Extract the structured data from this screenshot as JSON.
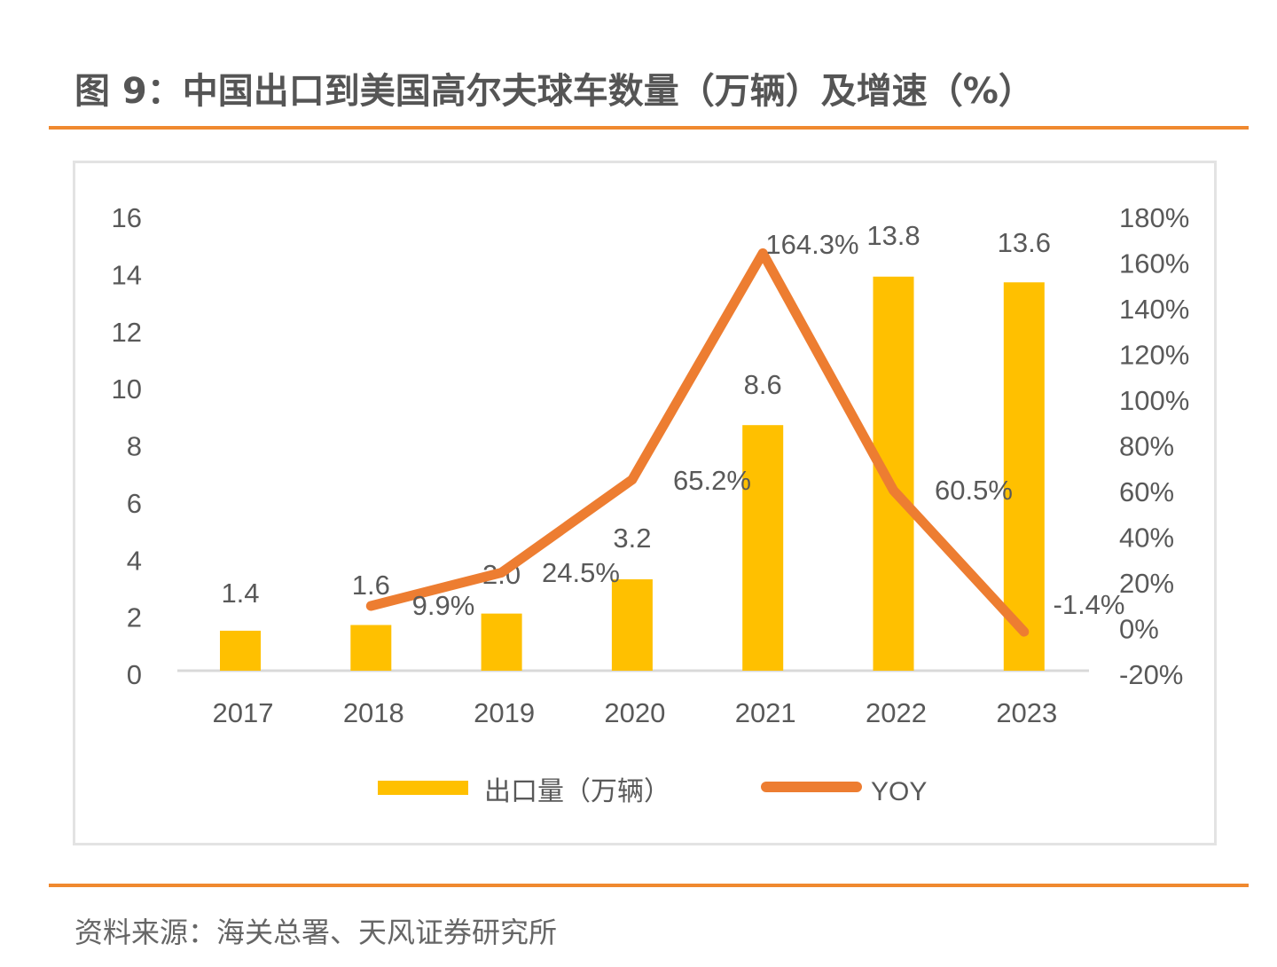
{
  "title": "图 9：中国出口到美国高尔夫球车数量（万辆）及增速（%）",
  "source": "资料来源：海关总署、天风证券研究所",
  "colors": {
    "bar": "#FFC000",
    "line": "#ED7D31",
    "rule": "#F0892F",
    "text": "#595959",
    "axis": "#D9D9D9"
  },
  "chart_data": {
    "type": "bar",
    "title": "中国出口到美国高尔夫球车数量（万辆）及增速（%）",
    "categories": [
      "2017",
      "2018",
      "2019",
      "2020",
      "2021",
      "2022",
      "2023"
    ],
    "series": [
      {
        "name": "出口量（万辆）",
        "type": "bar",
        "axis": "left",
        "values": [
          1.4,
          1.6,
          2.0,
          3.2,
          8.6,
          13.8,
          13.6
        ],
        "labels": [
          "1.4",
          "1.6",
          "2.0",
          "3.2",
          "8.6",
          "13.8",
          "13.6"
        ]
      },
      {
        "name": "YOY",
        "type": "line",
        "axis": "right",
        "x": [
          "2018",
          "2019",
          "2020",
          "2021",
          "2022",
          "2023"
        ],
        "values": [
          9.9,
          24.5,
          65.2,
          164.3,
          60.5,
          -1.4
        ],
        "labels": [
          "9.9%",
          "24.5%",
          "65.2%",
          "164.3%",
          "60.5%",
          "-1.4%"
        ]
      }
    ],
    "left_axis": {
      "ylim": [
        0,
        16
      ],
      "ticks": [
        "0",
        "2",
        "4",
        "6",
        "8",
        "10",
        "12",
        "14",
        "16"
      ]
    },
    "right_axis": {
      "ylim": [
        -20,
        180
      ],
      "ticks": [
        "-20%",
        "0%",
        "20%",
        "40%",
        "60%",
        "80%",
        "100%",
        "120%",
        "140%",
        "160%",
        "180%"
      ]
    },
    "xlabel": "",
    "ylabel": "",
    "grid": false,
    "legend": {
      "position": "bottom",
      "entries": [
        "出口量（万辆）",
        "YOY"
      ]
    }
  }
}
